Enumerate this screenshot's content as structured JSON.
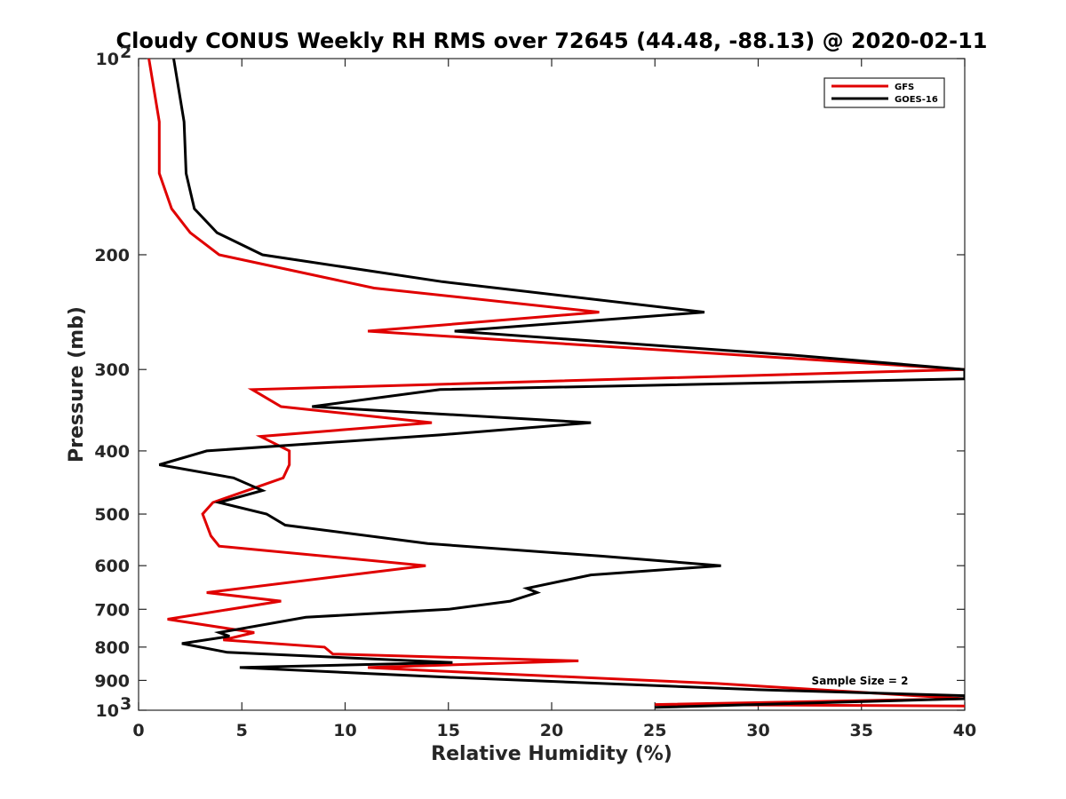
{
  "chart_data": {
    "type": "line",
    "title": "Cloudy CONUS Weekly RH RMS over 72645 (44.48, -88.13) @ 2020-02-11",
    "xlabel": "Relative Humidity (%)",
    "ylabel": "Pressure (mb)",
    "xlim": [
      0,
      40
    ],
    "ylim": [
      100,
      1000
    ],
    "yscale": "log",
    "yreversed": true,
    "grid": false,
    "legend_position": "top-right",
    "x_ticks": [
      "0",
      "5",
      "10",
      "15",
      "20",
      "25",
      "30",
      "35",
      "40"
    ],
    "y_ticks": [
      {
        "value": 100,
        "base": "10",
        "exp": "2"
      },
      {
        "value": 200,
        "label": "200"
      },
      {
        "value": 300,
        "label": "300"
      },
      {
        "value": 400,
        "label": "400"
      },
      {
        "value": 500,
        "label": "500"
      },
      {
        "value": 600,
        "label": "600"
      },
      {
        "value": 700,
        "label": "700"
      },
      {
        "value": 800,
        "label": "800"
      },
      {
        "value": 900,
        "label": "900"
      },
      {
        "value": 1000,
        "base": "10",
        "exp": "3"
      }
    ],
    "series": [
      {
        "name": "GFS",
        "color": "#e00000",
        "points": [
          [
            0.5,
            100
          ],
          [
            1.0,
            125
          ],
          [
            1.0,
            150
          ],
          [
            1.6,
            170
          ],
          [
            2.5,
            185
          ],
          [
            3.9,
            200
          ],
          [
            11.4,
            225
          ],
          [
            22.3,
            245
          ],
          [
            11.1,
            262
          ],
          [
            40.0,
            300
          ],
          [
            5.5,
            322
          ],
          [
            6.9,
            342
          ],
          [
            14.2,
            362
          ],
          [
            5.9,
            380
          ],
          [
            7.3,
            400
          ],
          [
            7.3,
            420
          ],
          [
            7.0,
            440
          ],
          [
            3.6,
            480
          ],
          [
            3.1,
            500
          ],
          [
            3.5,
            540
          ],
          [
            3.9,
            560
          ],
          [
            13.9,
            600
          ],
          [
            3.3,
            660
          ],
          [
            6.9,
            680
          ],
          [
            1.4,
            725
          ],
          [
            5.6,
            760
          ],
          [
            4.1,
            780
          ],
          [
            9.0,
            800
          ],
          [
            9.4,
            820
          ],
          [
            21.3,
            840
          ],
          [
            11.1,
            860
          ],
          [
            14.3,
            870
          ],
          [
            28.0,
            910
          ],
          [
            40.0,
            960
          ],
          [
            25.0,
            980
          ],
          [
            40.0,
            985
          ]
        ]
      },
      {
        "name": "GOES-16",
        "color": "#000000",
        "points": [
          [
            1.7,
            100
          ],
          [
            2.2,
            125
          ],
          [
            2.3,
            150
          ],
          [
            2.7,
            170
          ],
          [
            3.8,
            185
          ],
          [
            6.0,
            200
          ],
          [
            14.7,
            220
          ],
          [
            27.4,
            245
          ],
          [
            15.3,
            262
          ],
          [
            31.6,
            285
          ],
          [
            40.0,
            300
          ],
          [
            40.0,
            310
          ],
          [
            14.6,
            322
          ],
          [
            8.4,
            342
          ],
          [
            21.9,
            362
          ],
          [
            14.6,
            378
          ],
          [
            3.3,
            400
          ],
          [
            1.0,
            420
          ],
          [
            4.6,
            440
          ],
          [
            6.0,
            460
          ],
          [
            3.9,
            480
          ],
          [
            6.2,
            500
          ],
          [
            7.1,
            520
          ],
          [
            14.0,
            555
          ],
          [
            22.4,
            580
          ],
          [
            28.2,
            600
          ],
          [
            21.9,
            620
          ],
          [
            18.8,
            650
          ],
          [
            19.3,
            660
          ],
          [
            18.0,
            680
          ],
          [
            15.0,
            700
          ],
          [
            8.1,
            720
          ],
          [
            3.9,
            760
          ],
          [
            4.4,
            770
          ],
          [
            2.1,
            790
          ],
          [
            4.3,
            815
          ],
          [
            15.2,
            845
          ],
          [
            4.9,
            860
          ],
          [
            15.0,
            890
          ],
          [
            30.0,
            930
          ],
          [
            40.0,
            950
          ],
          [
            40.0,
            960
          ],
          [
            25.0,
            990
          ]
        ]
      }
    ],
    "annotation": "Sample Size = 2"
  }
}
